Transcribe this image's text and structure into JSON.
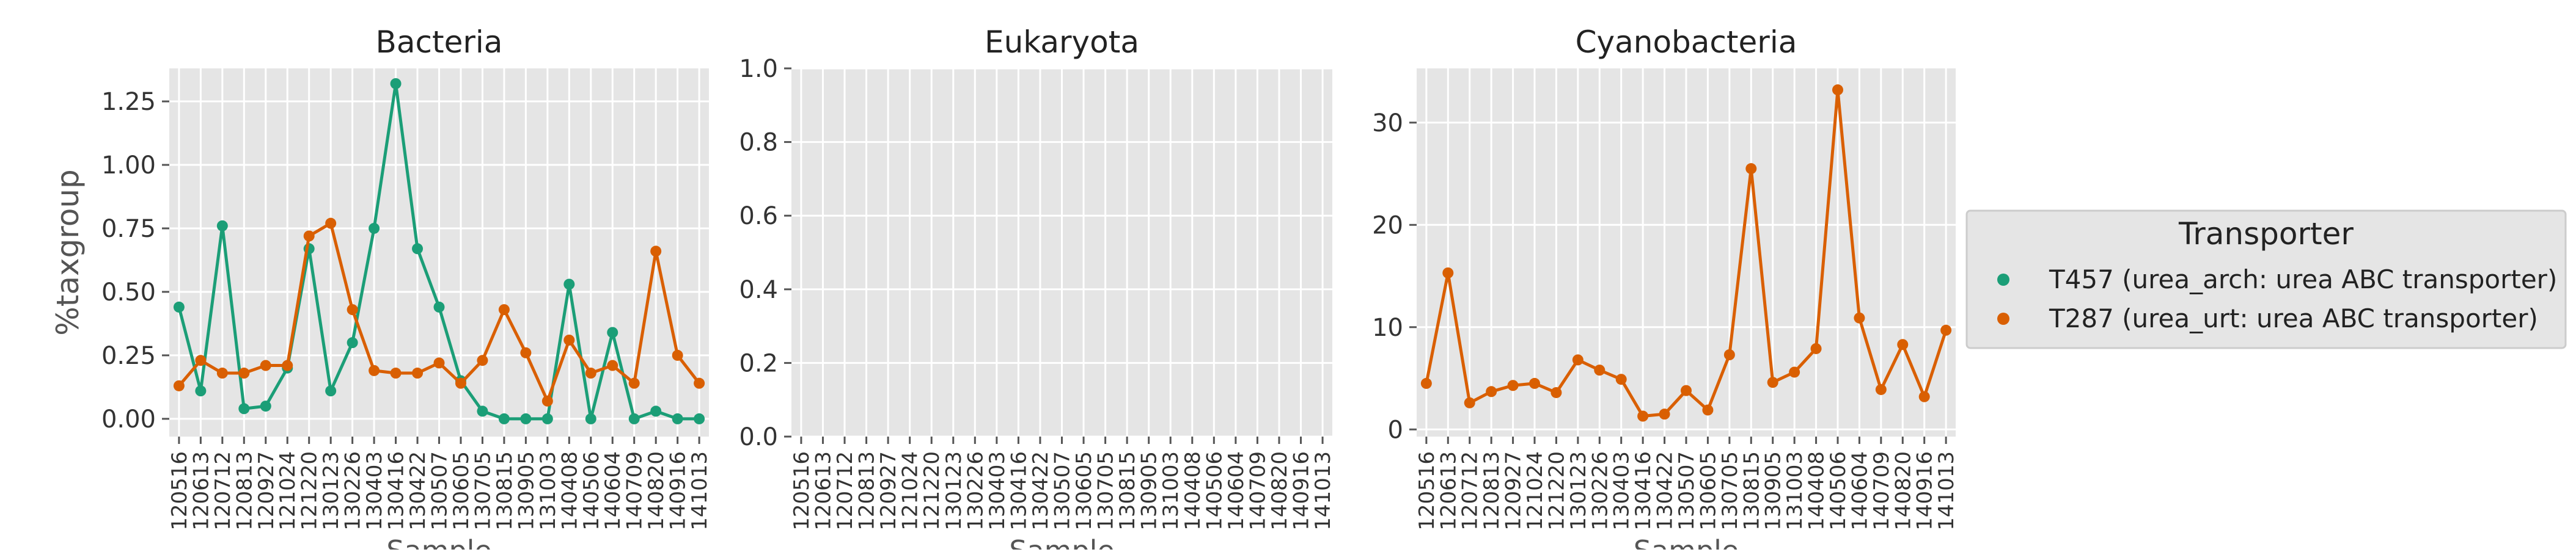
{
  "chart_data": [
    {
      "type": "line",
      "title": "Bacteria",
      "xlabel": "Sample",
      "ylabel": "%taxgroup",
      "ylim": [
        -0.07,
        1.38
      ],
      "yticks": [
        0.0,
        0.25,
        0.5,
        0.75,
        1.0,
        1.25
      ],
      "ytick_labels": [
        "0.00",
        "0.25",
        "0.50",
        "0.75",
        "1.00",
        "1.25"
      ],
      "grid": true,
      "categories": [
        "120516",
        "120613",
        "120712",
        "120813",
        "120927",
        "121024",
        "121220",
        "130123",
        "130226",
        "130403",
        "130416",
        "130422",
        "130507",
        "130605",
        "130705",
        "130815",
        "130905",
        "131003",
        "140408",
        "140506",
        "140604",
        "140709",
        "140820",
        "140916",
        "141013"
      ],
      "series": [
        {
          "name": "T457 (urea_arch: urea ABC transporter)",
          "color": "#1b9e77",
          "values": [
            0.44,
            0.11,
            0.76,
            0.04,
            0.05,
            0.2,
            0.67,
            0.11,
            0.3,
            0.75,
            1.32,
            0.67,
            0.44,
            0.15,
            0.03,
            0.0,
            0.0,
            0.0,
            0.53,
            0.0,
            0.34,
            0.0,
            0.03,
            0.0,
            0.0
          ]
        },
        {
          "name": "T287 (urea_urt: urea ABC transporter)",
          "color": "#d95f02",
          "values": [
            0.13,
            0.23,
            0.18,
            0.18,
            0.21,
            0.21,
            0.72,
            0.77,
            0.43,
            0.19,
            0.18,
            0.18,
            0.22,
            0.14,
            0.23,
            0.43,
            0.26,
            0.07,
            0.31,
            0.18,
            0.21,
            0.14,
            0.66,
            0.25,
            0.14
          ]
        }
      ]
    },
    {
      "type": "line",
      "title": "Eukaryota",
      "xlabel": "Sample",
      "ylabel": "",
      "ylim": [
        0.0,
        1.0
      ],
      "yticks": [
        0.0,
        0.2,
        0.4,
        0.6,
        0.8,
        1.0
      ],
      "ytick_labels": [
        "0.0",
        "0.2",
        "0.4",
        "0.6",
        "0.8",
        "1.0"
      ],
      "grid": true,
      "categories": [
        "120516",
        "120613",
        "120712",
        "120813",
        "120927",
        "121024",
        "121220",
        "130123",
        "130226",
        "130403",
        "130416",
        "130422",
        "130507",
        "130605",
        "130705",
        "130815",
        "130905",
        "131003",
        "140408",
        "140506",
        "140604",
        "140709",
        "140820",
        "140916",
        "141013"
      ],
      "series": []
    },
    {
      "type": "line",
      "title": "Cyanobacteria",
      "xlabel": "Sample",
      "ylabel": "",
      "ylim": [
        -0.7,
        35.3
      ],
      "yticks": [
        0,
        10,
        20,
        30
      ],
      "ytick_labels": [
        "0",
        "10",
        "20",
        "30"
      ],
      "grid": true,
      "categories": [
        "120516",
        "120613",
        "120712",
        "120813",
        "120927",
        "121024",
        "121220",
        "130123",
        "130226",
        "130403",
        "130416",
        "130422",
        "130507",
        "130605",
        "130705",
        "130815",
        "130905",
        "131003",
        "140408",
        "140506",
        "140604",
        "140709",
        "140820",
        "140916",
        "141013"
      ],
      "series": [
        {
          "name": "T287 (urea_urt: urea ABC transporter)",
          "color": "#d95f02",
          "values": [
            4.5,
            15.3,
            2.6,
            3.7,
            4.3,
            4.5,
            3.6,
            6.8,
            5.8,
            4.9,
            1.3,
            1.5,
            3.8,
            1.9,
            7.3,
            25.5,
            4.6,
            5.6,
            7.9,
            33.2,
            10.9,
            3.9,
            8.3,
            3.2,
            9.7
          ]
        }
      ]
    }
  ],
  "legend": {
    "title": "Transporter",
    "placement": "right",
    "items": [
      {
        "label": "T457 (urea_arch: urea ABC transporter)",
        "color": "#1b9e77"
      },
      {
        "label": "T287 (urea_urt: urea ABC transporter)",
        "color": "#d95f02"
      }
    ]
  },
  "colors": {
    "panel_bg": "#e5e5e5",
    "grid": "#ffffff",
    "text": "#333333",
    "tick": "#555555"
  }
}
